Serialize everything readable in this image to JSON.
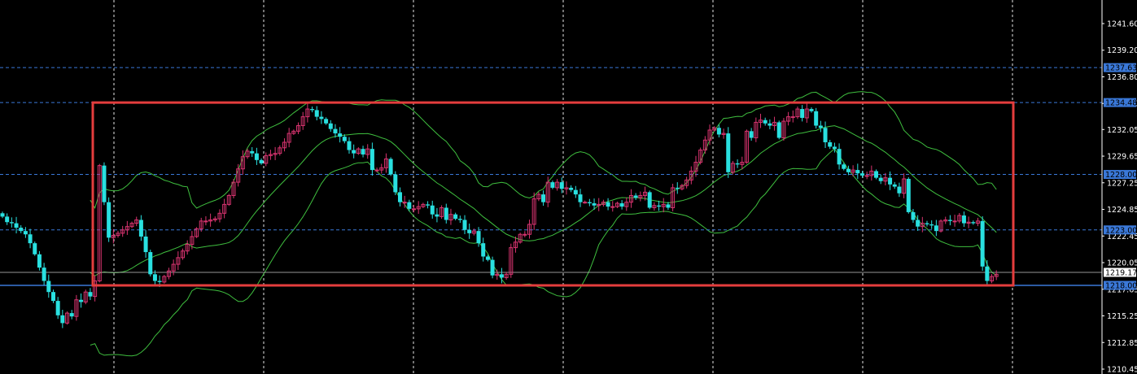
{
  "chart_data": {
    "type": "candlestick",
    "title": "",
    "xlabel": "",
    "ylabel": "",
    "ylim": [
      1210.45,
      1244.0
    ],
    "y_ticks": [
      "1241.60",
      "1239.20",
      "1236.80",
      "1234.40",
      "1232.05",
      "1229.65",
      "1227.25",
      "1224.85",
      "1222.45",
      "1220.05",
      "1217.65",
      "1215.25",
      "1212.85",
      "1210.45"
    ],
    "current_price": "1219.17",
    "horizontal_levels": [
      {
        "value": 1237.63,
        "label": "1237.63",
        "color": "#3a78d8",
        "style": "dashed"
      },
      {
        "value": 1234.48,
        "label": "1234.48",
        "color": "#3a78d8",
        "style": "dashed"
      },
      {
        "value": 1228.0,
        "label": "1228.00",
        "color": "#3a78d8",
        "style": "dashed"
      },
      {
        "value": 1223.0,
        "label": "1223.00",
        "color": "#3a78d8",
        "style": "dashed"
      },
      {
        "value": 1218.0,
        "label": "1218.00",
        "color": "#3a78d8",
        "style": "solid"
      }
    ],
    "range_box": {
      "start_index": 14,
      "end_index": 206,
      "top": 1234.48,
      "bottom": 1218.0,
      "color": "#e43d3d"
    },
    "grid": true,
    "colors": {
      "up": "#d8336f",
      "down": "#29e0e0",
      "band": "#3fbf3f",
      "grid": "#ffffff",
      "background": "#000000"
    },
    "close": [
      1224.2,
      1223.7,
      1223.6,
      1223.2,
      1222.9,
      1222.6,
      1221.8,
      1220.8,
      1219.6,
      1218.4,
      1217.4,
      1216.6,
      1215.3,
      1214.6,
      1215.5,
      1215.2,
      1216.7,
      1216.5,
      1217.4,
      1217.0,
      1218.4,
      1228.8,
      1225.5,
      1222.3,
      1222.5,
      1222.7,
      1223.0,
      1223.3,
      1223.6,
      1223.9,
      1222.4,
      1221.0,
      1219.0,
      1218.4,
      1218.3,
      1218.8,
      1219.3,
      1219.9,
      1220.5,
      1221.1,
      1221.7,
      1222.4,
      1223.1,
      1223.8,
      1223.8,
      1223.9,
      1224.0,
      1224.5,
      1225.3,
      1226.1,
      1227.3,
      1228.5,
      1229.6,
      1230.1,
      1229.9,
      1229.3,
      1229.0,
      1229.7,
      1229.8,
      1229.9,
      1230.4,
      1230.9,
      1231.7,
      1231.9,
      1232.4,
      1233.2,
      1233.9,
      1233.8,
      1233.2,
      1233.0,
      1232.6,
      1232.1,
      1231.7,
      1231.4,
      1231.0,
      1230.2,
      1229.9,
      1230.3,
      1229.8,
      1230.3,
      1228.4,
      1228.4,
      1228.6,
      1229.4,
      1228.0,
      1226.4,
      1225.5,
      1225.5,
      1224.9,
      1224.9,
      1225.1,
      1225.3,
      1225.2,
      1224.4,
      1224.2,
      1225.0,
      1223.9,
      1224.4,
      1224.0,
      1223.9,
      1223.0,
      1222.7,
      1222.9,
      1221.8,
      1220.6,
      1220.3,
      1218.9,
      1219.0,
      1218.7,
      1219.0,
      1221.4,
      1221.9,
      1222.6,
      1222.6,
      1223.5,
      1225.8,
      1226.2,
      1225.5,
      1227.3,
      1226.8,
      1227.3,
      1226.7,
      1226.8,
      1226.6,
      1226.2,
      1225.5,
      1225.5,
      1225.4,
      1225.2,
      1225.3,
      1225.5,
      1225.1,
      1225.1,
      1225.4,
      1225.1,
      1225.5,
      1226.1,
      1225.9,
      1226.1,
      1226.4,
      1225.0,
      1225.2,
      1225.1,
      1225.3,
      1225.0,
      1226.8,
      1226.7,
      1227.0,
      1227.5,
      1228.3,
      1229.1,
      1230.2,
      1231.1,
      1232.0,
      1232.2,
      1231.6,
      1231.7,
      1228.2,
      1229.0,
      1228.9,
      1229.1,
      1231.9,
      1231.3,
      1232.7,
      1232.9,
      1232.6,
      1232.4,
      1232.7,
      1231.3,
      1232.8,
      1233.2,
      1233.2,
      1233.9,
      1233.1,
      1233.9,
      1233.7,
      1232.4,
      1232.2,
      1230.9,
      1230.5,
      1230.3,
      1228.9,
      1228.5,
      1228.2,
      1228.4,
      1228.1,
      1227.9,
      1227.9,
      1228.3,
      1227.7,
      1227.4,
      1227.7,
      1227.1,
      1226.9,
      1226.3,
      1227.6,
      1224.6,
      1223.9,
      1223.3,
      1223.6,
      1223.5,
      1223.4,
      1222.9,
      1223.8,
      1223.9,
      1223.8,
      1223.8,
      1224.3,
      1223.6,
      1223.7,
      1223.6,
      1223.8,
      1219.7,
      1218.4,
      1218.8,
      1219.0
    ]
  }
}
